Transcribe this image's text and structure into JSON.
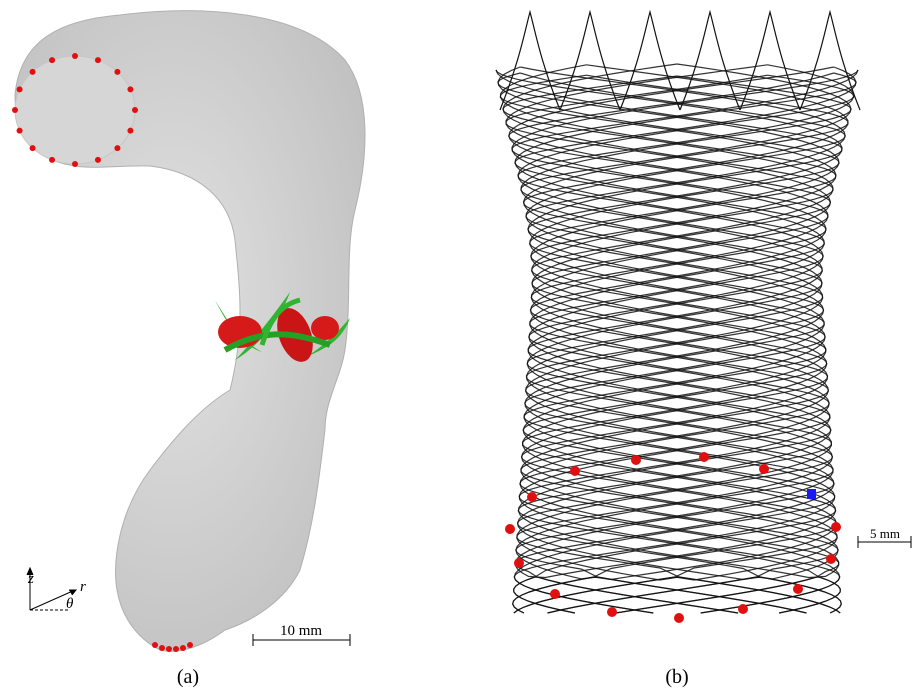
{
  "panel_a": {
    "axis_z": "z",
    "axis_r": "r",
    "axis_theta": "θ",
    "scale_bar": "10 mm",
    "label": "(a)"
  },
  "panel_b": {
    "scale_bar": "5 mm",
    "label": "(b)"
  }
}
